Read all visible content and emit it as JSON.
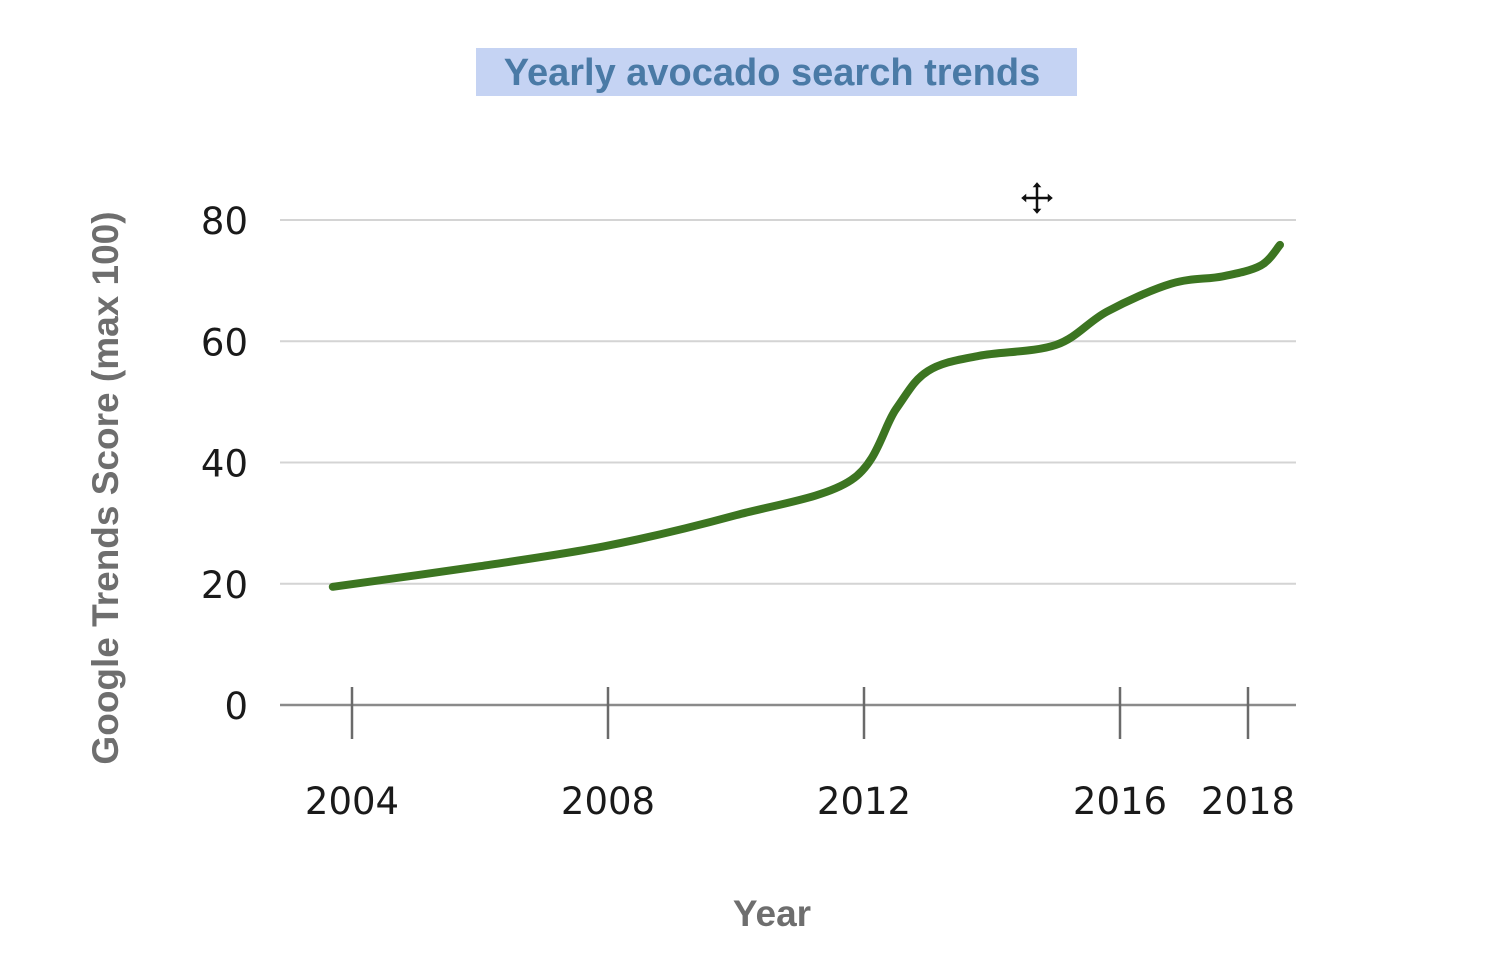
{
  "chart_data": {
    "type": "line",
    "title": "Yearly avocado search trends",
    "xlabel": "Year",
    "ylabel": "Google Trends Score (max 100)",
    "x_ticks": [
      2004,
      2008,
      2012,
      2016,
      2018
    ],
    "y_ticks": [
      0,
      20,
      40,
      60,
      80
    ],
    "ylim": [
      0,
      80
    ],
    "grid": true,
    "series": [
      {
        "color": "#3c7521",
        "x": [
          2003.7,
          2006,
          2008,
          2010,
          2011.8,
          2012.5,
          2013,
          2013.8,
          2015,
          2015.8,
          2016.8,
          2017.6,
          2018.2,
          2018.5
        ],
        "y": [
          19.5,
          22.9,
          26.3,
          31.3,
          37.1,
          48.8,
          55.1,
          57.6,
          59.4,
          64.9,
          69.5,
          70.7,
          72.5,
          75.9
        ]
      }
    ]
  },
  "cursor": {
    "icon": "move-cursor-icon"
  }
}
